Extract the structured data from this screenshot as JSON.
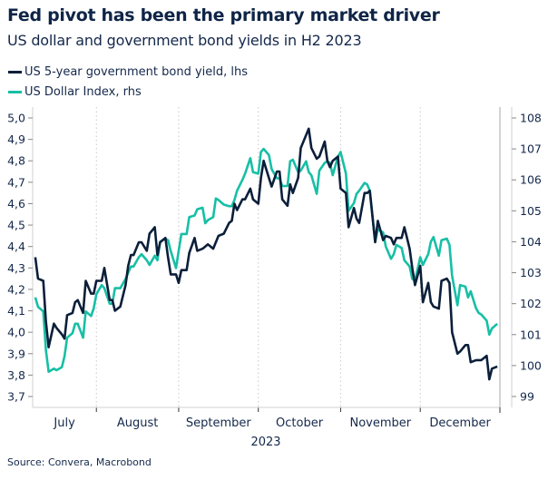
{
  "title": "Fed pivot has been the primary market driver",
  "subtitle": "US dollar and government bond yields in H2 2023",
  "source": "Source: Convera, Macrobond",
  "colors": {
    "yield": "#0b1f3a",
    "dxy": "#17bfa5",
    "text": "#14284b"
  },
  "chart_data": {
    "type": "line",
    "title": "Fed pivot has been the primary market driver",
    "subtitle": "US dollar and government bond yields in H2 2023",
    "xlabel": "2023",
    "x_ticks": [
      "July",
      "August",
      "September",
      "October",
      "November",
      "December"
    ],
    "xlim": [
      "2023-07-08",
      "2023-12-31"
    ],
    "grid": "vertical dotted at month boundaries",
    "legend": "top-left",
    "y_left": {
      "ylim": [
        3.7,
        5.0
      ],
      "ticks": [
        "5,0",
        "4,9",
        "4,8",
        "4,7",
        "4,6",
        "4,5",
        "4,4",
        "4,3",
        "4,2",
        "4,1",
        "4,0",
        "3,9",
        "3,8",
        "3,7"
      ]
    },
    "y_right": {
      "ylim": [
        99,
        108
      ],
      "ticks": [
        "108",
        "107",
        "106",
        "105",
        "104",
        "103",
        "102",
        "101",
        "100",
        "99"
      ]
    },
    "x": [
      "2023-07-09",
      "2023-07-10",
      "2023-07-12",
      "2023-07-13",
      "2023-07-14",
      "2023-07-16",
      "2023-07-17",
      "2023-07-19",
      "2023-07-20",
      "2023-07-21",
      "2023-07-23",
      "2023-07-24",
      "2023-07-25",
      "2023-07-27",
      "2023-07-28",
      "2023-07-30",
      "2023-07-31",
      "2023-08-01",
      "2023-08-03",
      "2023-08-04",
      "2023-08-06",
      "2023-08-07",
      "2023-08-08",
      "2023-08-10",
      "2023-08-12",
      "2023-08-13",
      "2023-08-14",
      "2023-08-15",
      "2023-08-17",
      "2023-08-18",
      "2023-08-20",
      "2023-08-21",
      "2023-08-23",
      "2023-08-24",
      "2023-08-25",
      "2023-08-27",
      "2023-08-28",
      "2023-08-29",
      "2023-08-31",
      "2023-09-01",
      "2023-09-02",
      "2023-09-04",
      "2023-09-05",
      "2023-09-07",
      "2023-09-08",
      "2023-09-10",
      "2023-09-11",
      "2023-09-12",
      "2023-09-14",
      "2023-09-15",
      "2023-09-16",
      "2023-09-18",
      "2023-09-20",
      "2023-09-21",
      "2023-09-22",
      "2023-09-23",
      "2023-09-25",
      "2023-09-26",
      "2023-09-28",
      "2023-09-29",
      "2023-10-01",
      "2023-10-02",
      "2023-10-03",
      "2023-10-05",
      "2023-10-06",
      "2023-10-08",
      "2023-10-09",
      "2023-10-10",
      "2023-10-12",
      "2023-10-13",
      "2023-10-14",
      "2023-10-16",
      "2023-10-17",
      "2023-10-19",
      "2023-10-20",
      "2023-10-21",
      "2023-10-23",
      "2023-10-24",
      "2023-10-26",
      "2023-10-27",
      "2023-10-28",
      "2023-10-29",
      "2023-10-31",
      "2023-11-01",
      "2023-11-03",
      "2023-11-04",
      "2023-11-06",
      "2023-11-07",
      "2023-11-08",
      "2023-11-10",
      "2023-11-11",
      "2023-11-12",
      "2023-11-14",
      "2023-11-15",
      "2023-11-17",
      "2023-11-18",
      "2023-11-20",
      "2023-11-21",
      "2023-11-22",
      "2023-11-24",
      "2023-11-25",
      "2023-11-27",
      "2023-11-28",
      "2023-11-29",
      "2023-12-01",
      "2023-12-02",
      "2023-12-04",
      "2023-12-05",
      "2023-12-06",
      "2023-12-08",
      "2023-12-09",
      "2023-12-11",
      "2023-12-12",
      "2023-12-13",
      "2023-12-15",
      "2023-12-16",
      "2023-12-18",
      "2023-12-19",
      "2023-12-20",
      "2023-12-22",
      "2023-12-23",
      "2023-12-24",
      "2023-12-26",
      "2023-12-27",
      "2023-12-28",
      "2023-12-30"
    ],
    "series": [
      {
        "name": "US 5-year government bond yield, lhs",
        "axis": "left",
        "color": "#0b1f3a",
        "values": [
          4.35,
          4.25,
          4.24,
          4.05,
          3.93,
          4.04,
          4.02,
          3.99,
          3.97,
          4.08,
          4.09,
          4.14,
          4.15,
          4.09,
          4.24,
          4.18,
          4.18,
          4.24,
          4.24,
          4.3,
          4.15,
          4.15,
          4.1,
          4.12,
          4.22,
          4.31,
          4.36,
          4.36,
          4.42,
          4.42,
          4.38,
          4.46,
          4.49,
          4.36,
          4.42,
          4.44,
          4.35,
          4.27,
          4.27,
          4.23,
          4.29,
          4.29,
          4.37,
          4.44,
          4.38,
          4.39,
          4.4,
          4.41,
          4.39,
          4.42,
          4.45,
          4.46,
          4.51,
          4.52,
          4.6,
          4.57,
          4.62,
          4.62,
          4.67,
          4.62,
          4.6,
          4.72,
          4.8,
          4.72,
          4.68,
          4.75,
          4.75,
          4.62,
          4.59,
          4.69,
          4.65,
          4.72,
          4.86,
          4.92,
          4.95,
          4.86,
          4.81,
          4.82,
          4.89,
          4.8,
          4.77,
          4.8,
          4.82,
          4.67,
          4.65,
          4.49,
          4.58,
          4.53,
          4.51,
          4.65,
          4.65,
          4.66,
          4.42,
          4.52,
          4.43,
          4.45,
          4.44,
          4.41,
          4.44,
          4.44,
          4.49,
          4.39,
          4.3,
          4.22,
          4.31,
          4.14,
          4.23,
          4.14,
          4.12,
          4.11,
          4.24,
          4.25,
          4.23,
          4.0,
          3.9,
          3.91,
          3.94,
          3.94,
          3.86,
          3.87,
          3.87,
          3.87,
          3.89,
          3.78,
          3.83,
          3.84
        ]
      },
      {
        "name": "US Dollar Index, rhs",
        "axis": "right",
        "color": "#17bfa5",
        "values": [
          102.2,
          101.9,
          101.75,
          100.5,
          99.8,
          99.9,
          99.85,
          99.95,
          100.3,
          100.9,
          101.05,
          101.35,
          101.35,
          100.9,
          101.75,
          101.6,
          101.85,
          102.3,
          102.6,
          102.5,
          102.0,
          102.0,
          102.5,
          102.5,
          102.8,
          103.0,
          103.2,
          103.2,
          103.5,
          103.6,
          103.4,
          103.25,
          103.55,
          103.4,
          104.0,
          104.1,
          104.05,
          103.7,
          103.15,
          103.7,
          104.25,
          104.25,
          104.8,
          104.85,
          105.05,
          105.1,
          104.6,
          104.7,
          104.8,
          105.4,
          105.35,
          105.2,
          105.15,
          105.15,
          105.35,
          105.65,
          106.0,
          106.2,
          106.7,
          106.25,
          106.2,
          106.9,
          107.0,
          106.8,
          106.35,
          106.05,
          106.05,
          105.8,
          105.8,
          106.6,
          106.65,
          106.25,
          106.3,
          106.6,
          106.25,
          106.15,
          105.55,
          106.3,
          106.55,
          106.6,
          106.55,
          106.15,
          106.75,
          106.9,
          106.2,
          105.0,
          105.25,
          105.55,
          105.65,
          105.9,
          105.85,
          105.65,
          104.0,
          104.4,
          104.3,
          103.85,
          103.45,
          103.6,
          103.9,
          103.8,
          103.4,
          103.2,
          102.8,
          102.75,
          103.5,
          103.25,
          103.6,
          104.0,
          104.15,
          103.55,
          104.05,
          104.1,
          103.9,
          102.9,
          101.95,
          102.6,
          102.55,
          102.2,
          102.4,
          101.85,
          101.7,
          101.65,
          101.45,
          101.0,
          101.2,
          101.35
        ]
      }
    ]
  }
}
